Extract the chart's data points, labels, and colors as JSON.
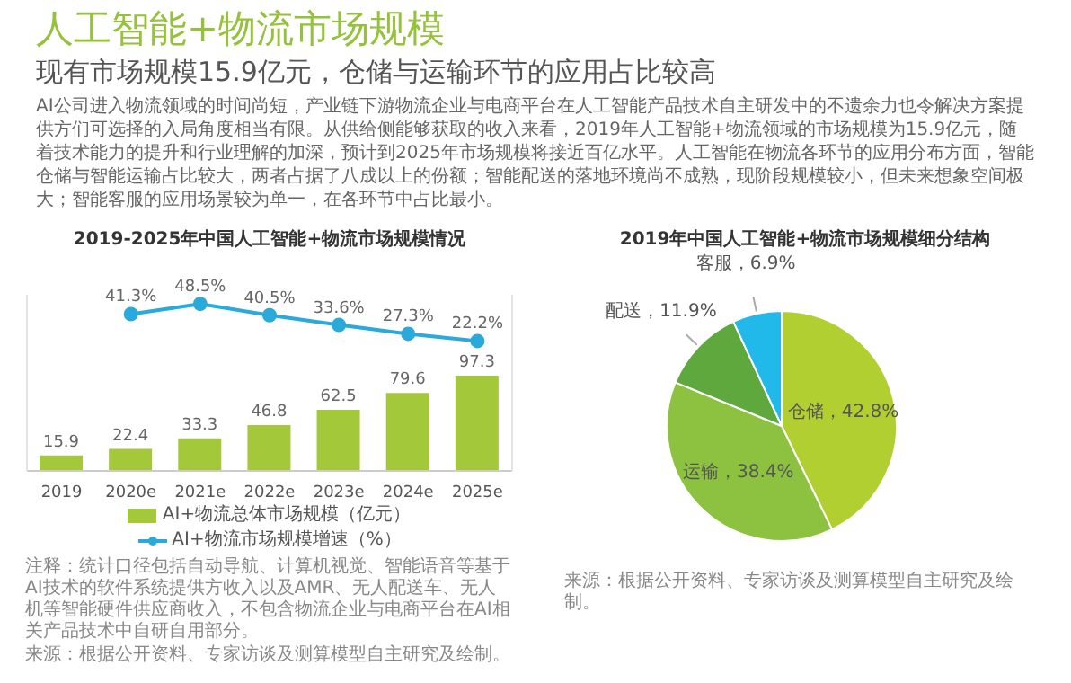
{
  "chart_data": [
    {
      "type": "other",
      "title": "人工智能+物流市场规模",
      "subtitle": "现有市场规模15.9亿元，仓储与运输环节的应用占比较高",
      "annotations": [
        "AI公司进入物流领域的时间尚短，产业链下游物流企业与电商平台在人工智能产品技术自主研发中的不遗余力也令解决方案提供方们可选择的入局角度相当有限。从供给侧能够获取的收入来看，2019年人工智能+物流领域的市场规模为15.9亿元，随着技术能力的提升和行业理解的加深，预计到2025年市场规模将接近百亿水平。人工智能在物流各环节的应用分布方面，智能仓储与智能运输占比较大，两者占据了八成以上的份额；智能配送的落地环境尚不成熟，现阶段规模较小，但未来想象空间极大；智能客服的应用场景较为单一，在各环节中占比最小。"
      ]
    },
    {
      "type": "bar",
      "title": "2019-2025年中国人工智能+物流市场规模情况",
      "categories": [
        "2019",
        "2020e",
        "2021e",
        "2022e",
        "2023e",
        "2024e",
        "2025e"
      ],
      "series": [
        {
          "name": "AI+物流总体市场规模（亿元）",
          "type": "bar",
          "color": "#a3c83a",
          "values": [
            15.9,
            22.4,
            33.3,
            46.8,
            62.5,
            79.6,
            97.3
          ],
          "value_labels": [
            "15.9",
            "22.4",
            "33.3",
            "46.8",
            "62.5",
            "79.6",
            "97.3"
          ]
        },
        {
          "name": "AI+物流市场规模增速（%）",
          "type": "line",
          "axis": "y2",
          "color": "#2aa9db",
          "values": [
            null,
            41.3,
            48.5,
            40.5,
            33.6,
            27.3,
            22.2
          ],
          "value_labels": [
            null,
            "41.3%",
            "48.5%",
            "40.5%",
            "33.6%",
            "27.3%",
            "22.2%"
          ]
        }
      ],
      "ylim": [
        0,
        180
      ],
      "y2lim": [
        -70,
        55
      ],
      "tick_labels": "x",
      "legend": "bottom",
      "marker": "circle",
      "annotations": [
        "注释：统计口径包括自动导航、计算机视觉、智能语音等基于AI技术的软件系统提供方收入以及AMR、无人配送车、无人机等智能硬件供应商收入，不包含物流企业与电商平台在AI相关产品技术中自研自用部分。",
        "来源：根据公开资料、专家访谈及测算模型自主研究及绘制。"
      ]
    },
    {
      "type": "pie",
      "title": "2019年中国人工智能+物流市场规模细分结构",
      "categories": [
        "仓储",
        "运输",
        "配送",
        "客服"
      ],
      "values": [
        42.8,
        38.4,
        11.9,
        6.9
      ],
      "value_labels": [
        "42.8%",
        "38.4%",
        "11.9%",
        "6.9%"
      ],
      "colors": [
        "#b2cf32",
        "#8cc23f",
        "#5ea83e",
        "#21b8ea"
      ],
      "annotations": [
        "来源：根据公开资料、专家访谈及测算模型自主研究及绘制。"
      ]
    }
  ]
}
